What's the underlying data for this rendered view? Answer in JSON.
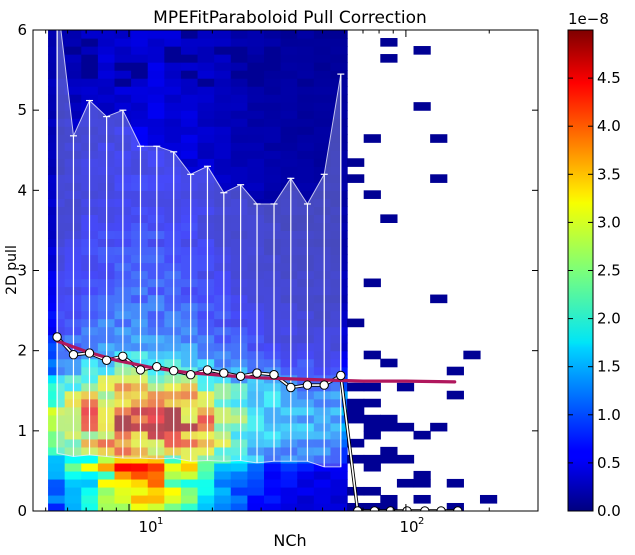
{
  "chart_data": {
    "type": "heatmap",
    "title": "MPEFitParaboloid Pull Correction",
    "xlabel": "NCh",
    "ylabel": "2D pull",
    "x_scale": "log",
    "xlim": [
      4.5,
      300
    ],
    "ylim": [
      0,
      6
    ],
    "x_tick_values": [
      10,
      100
    ],
    "x_tick_labels": [
      "10¹",
      "10²"
    ],
    "y_ticks": [
      "0",
      "1",
      "2",
      "3",
      "4",
      "5",
      "6"
    ],
    "colorbar": {
      "range": [
        0,
        5e-08
      ],
      "multiplier": "1e−8",
      "ticks": [
        "0.0",
        "0.5",
        "1.0",
        "1.5",
        "2.0",
        "2.5",
        "3.0",
        "3.5",
        "4.0",
        "4.5"
      ],
      "colormap": "jet"
    },
    "profile_points": {
      "x": [
        5.5,
        6.3,
        7.2,
        8.3,
        9.5,
        11.0,
        12.6,
        14.5,
        16.7,
        19.2,
        22.0,
        25.3,
        29.0,
        33.4,
        38.4,
        44.1,
        50.7,
        58.2,
        67,
        77,
        88,
        101,
        117,
        134,
        154
      ],
      "y": [
        2.17,
        1.95,
        1.97,
        1.88,
        1.93,
        1.76,
        1.8,
        1.75,
        1.7,
        1.76,
        1.72,
        1.68,
        1.72,
        1.7,
        1.54,
        1.57,
        1.57,
        1.69,
        0,
        0,
        0,
        0,
        0,
        0,
        0
      ],
      "upper": [
        6.4,
        4.68,
        5.12,
        4.92,
        5.0,
        4.55,
        4.55,
        4.48,
        4.2,
        4.3,
        3.97,
        4.07,
        3.83,
        3.83,
        4.15,
        3.83,
        4.2,
        5.45
      ],
      "lower": [
        0.72,
        0.68,
        0.7,
        0.68,
        0.66,
        0.66,
        0.65,
        0.66,
        0.62,
        0.63,
        0.62,
        0.63,
        0.6,
        0.62,
        0.62,
        0.62,
        0.55,
        0.55
      ]
    },
    "fit_curve": {
      "x": [
        5.5,
        7,
        9,
        12,
        16,
        22,
        30,
        45,
        70,
        100,
        150
      ],
      "y": [
        2.12,
        1.99,
        1.88,
        1.79,
        1.73,
        1.69,
        1.66,
        1.64,
        1.62,
        1.62,
        1.61
      ]
    },
    "colors": {
      "fit": "#b0175d",
      "profile": "#ffffff",
      "band": "rgba(200,210,240,0.35)",
      "background_bin": "#00007f"
    }
  }
}
